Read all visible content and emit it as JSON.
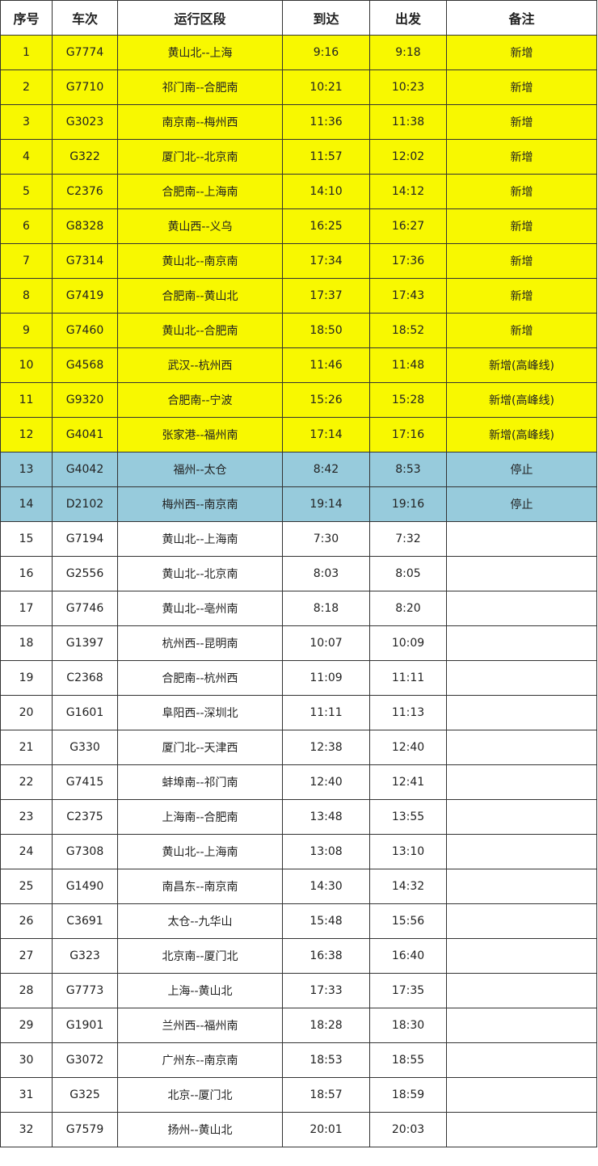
{
  "colors": {
    "added": "#f8f800",
    "stopped": "#97cbdc",
    "normal": "#ffffff"
  },
  "table": {
    "headers": [
      "序号",
      "车次",
      "运行区段",
      "到达",
      "出发",
      "备注"
    ],
    "rows": [
      {
        "cells": [
          "1",
          "G7774",
          "黄山北--上海",
          "9:16",
          "9:18",
          "新增"
        ],
        "status": "added"
      },
      {
        "cells": [
          "2",
          "G7710",
          "祁门南--合肥南",
          "10:21",
          "10:23",
          "新增"
        ],
        "status": "added"
      },
      {
        "cells": [
          "3",
          "G3023",
          "南京南--梅州西",
          "11:36",
          "11:38",
          "新增"
        ],
        "status": "added"
      },
      {
        "cells": [
          "4",
          "G322",
          "厦门北--北京南",
          "11:57",
          "12:02",
          "新增"
        ],
        "status": "added"
      },
      {
        "cells": [
          "5",
          "C2376",
          "合肥南--上海南",
          "14:10",
          "14:12",
          "新增"
        ],
        "status": "added"
      },
      {
        "cells": [
          "6",
          "G8328",
          "黄山西--义乌",
          "16:25",
          "16:27",
          "新增"
        ],
        "status": "added"
      },
      {
        "cells": [
          "7",
          "G7314",
          "黄山北--南京南",
          "17:34",
          "17:36",
          "新增"
        ],
        "status": "added"
      },
      {
        "cells": [
          "8",
          "G7419",
          "合肥南--黄山北",
          "17:37",
          "17:43",
          "新增"
        ],
        "status": "added"
      },
      {
        "cells": [
          "9",
          "G7460",
          "黄山北--合肥南",
          "18:50",
          "18:52",
          "新增"
        ],
        "status": "added"
      },
      {
        "cells": [
          "10",
          "G4568",
          "武汉--杭州西",
          "11:46",
          "11:48",
          "新增(高峰线)"
        ],
        "status": "added"
      },
      {
        "cells": [
          "11",
          "G9320",
          "合肥南--宁波",
          "15:26",
          "15:28",
          "新增(高峰线)"
        ],
        "status": "added"
      },
      {
        "cells": [
          "12",
          "G4041",
          "张家港--福州南",
          "17:14",
          "17:16",
          "新增(高峰线)"
        ],
        "status": "added"
      },
      {
        "cells": [
          "13",
          "G4042",
          "福州--太仓",
          "8:42",
          "8:53",
          "停止"
        ],
        "status": "stopped"
      },
      {
        "cells": [
          "14",
          "D2102",
          "梅州西--南京南",
          "19:14",
          "19:16",
          "停止"
        ],
        "status": "stopped"
      },
      {
        "cells": [
          "15",
          "G7194",
          "黄山北--上海南",
          "7:30",
          "7:32",
          ""
        ],
        "status": "normal"
      },
      {
        "cells": [
          "16",
          "G2556",
          "黄山北--北京南",
          "8:03",
          "8:05",
          ""
        ],
        "status": "normal"
      },
      {
        "cells": [
          "17",
          "G7746",
          "黄山北--亳州南",
          "8:18",
          "8:20",
          ""
        ],
        "status": "normal"
      },
      {
        "cells": [
          "18",
          "G1397",
          "杭州西--昆明南",
          "10:07",
          "10:09",
          ""
        ],
        "status": "normal"
      },
      {
        "cells": [
          "19",
          "C2368",
          "合肥南--杭州西",
          "11:09",
          "11:11",
          ""
        ],
        "status": "normal"
      },
      {
        "cells": [
          "20",
          "G1601",
          "阜阳西--深圳北",
          "11:11",
          "11:13",
          ""
        ],
        "status": "normal"
      },
      {
        "cells": [
          "21",
          "G330",
          "厦门北--天津西",
          "12:38",
          "12:40",
          ""
        ],
        "status": "normal"
      },
      {
        "cells": [
          "22",
          "G7415",
          "蚌埠南--祁门南",
          "12:40",
          "12:41",
          ""
        ],
        "status": "normal"
      },
      {
        "cells": [
          "23",
          "C2375",
          "上海南--合肥南",
          "13:48",
          "13:55",
          ""
        ],
        "status": "normal"
      },
      {
        "cells": [
          "24",
          "G7308",
          "黄山北--上海南",
          "13:08",
          "13:10",
          ""
        ],
        "status": "normal"
      },
      {
        "cells": [
          "25",
          "G1490",
          "南昌东--南京南",
          "14:30",
          "14:32",
          ""
        ],
        "status": "normal"
      },
      {
        "cells": [
          "26",
          "C3691",
          "太仓--九华山",
          "15:48",
          "15:56",
          ""
        ],
        "status": "normal"
      },
      {
        "cells": [
          "27",
          "G323",
          "北京南--厦门北",
          "16:38",
          "16:40",
          ""
        ],
        "status": "normal"
      },
      {
        "cells": [
          "28",
          "G7773",
          "上海--黄山北",
          "17:33",
          "17:35",
          ""
        ],
        "status": "normal"
      },
      {
        "cells": [
          "29",
          "G1901",
          "兰州西--福州南",
          "18:28",
          "18:30",
          ""
        ],
        "status": "normal"
      },
      {
        "cells": [
          "30",
          "G3072",
          "广州东--南京南",
          "18:53",
          "18:55",
          ""
        ],
        "status": "normal"
      },
      {
        "cells": [
          "31",
          "G325",
          "北京--厦门北",
          "18:57",
          "18:59",
          ""
        ],
        "status": "normal"
      },
      {
        "cells": [
          "32",
          "G7579",
          "扬州--黄山北",
          "20:01",
          "20:03",
          ""
        ],
        "status": "normal"
      }
    ]
  }
}
